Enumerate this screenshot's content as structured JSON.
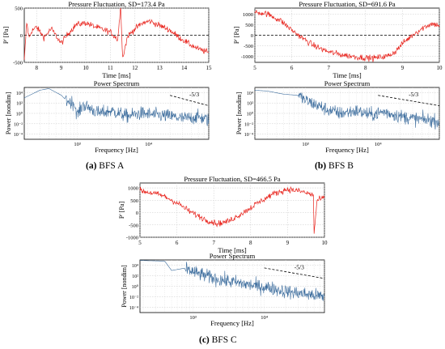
{
  "colors": {
    "pressure": "#e8231c",
    "spectrum": "#3e6e9e"
  },
  "captions": [
    {
      "letter": "(a)",
      "text": "BFS A"
    },
    {
      "letter": "(b)",
      "text": "BFS B"
    },
    {
      "letter": "(c)",
      "text": "BFS C"
    }
  ],
  "chart_data": [
    {
      "type": "line",
      "panel": "A-pressure",
      "title": "Pressure Fluctuation, SD=173.4 Pa",
      "xlabel": "Time [ms]",
      "ylabel": "P' [Pa]",
      "xlim": [
        7.5,
        15
      ],
      "ylim": [
        -500,
        500
      ],
      "xticks": [
        "8",
        "9",
        "10",
        "11",
        "12",
        "13",
        "14",
        "15"
      ],
      "yticks": [
        "500",
        "0",
        "-500"
      ],
      "grid": true,
      "zero_line": "dashed",
      "series": [
        {
          "points": [
            [
              7.5,
              -480
            ],
            [
              7.6,
              230
            ],
            [
              7.7,
              -50
            ],
            [
              7.8,
              80
            ],
            [
              8,
              150
            ],
            [
              8.3,
              -40
            ],
            [
              8.6,
              120
            ],
            [
              9,
              -150
            ],
            [
              9.3,
              40
            ],
            [
              9.6,
              190
            ],
            [
              10,
              230
            ],
            [
              10.3,
              170
            ],
            [
              10.6,
              120
            ],
            [
              11,
              60
            ],
            [
              11.3,
              -80
            ],
            [
              11.42,
              540
            ],
            [
              11.5,
              -420
            ],
            [
              11.7,
              -20
            ],
            [
              12,
              120
            ],
            [
              12.3,
              220
            ],
            [
              12.6,
              260
            ],
            [
              13,
              180
            ],
            [
              13.4,
              100
            ],
            [
              13.8,
              -40
            ],
            [
              14.2,
              -160
            ],
            [
              14.6,
              -260
            ],
            [
              15,
              -320
            ]
          ]
        }
      ]
    },
    {
      "type": "line",
      "panel": "A-spectrum",
      "title": "Power Spectrum",
      "xlabel": "Frequency [Hz]",
      "ylabel": "Power [nondim]",
      "x_scale": "log",
      "y_scale": "log",
      "xlim": [
        180,
        70000
      ],
      "ylim": [
        1e-05,
        100000.0
      ],
      "xticks": [
        "10³",
        "10⁴"
      ],
      "yticks": [
        "10⁴",
        "10²",
        "10⁰",
        "10⁻²",
        "10⁻⁴"
      ],
      "annotation": "-5/3",
      "series": [
        {
          "points": [
            [
              180,
              1000
            ],
            [
              300,
              30000
            ],
            [
              400,
              60000
            ],
            [
              600,
              3000
            ],
            [
              700,
              300
            ],
            [
              900,
              100
            ],
            [
              1000,
              0.5
            ],
            [
              1200,
              40
            ],
            [
              1500,
              10
            ],
            [
              2000,
              1
            ],
            [
              3000,
              3
            ],
            [
              5000,
              0.3
            ],
            [
              8000,
              1
            ],
            [
              12000,
              0.5
            ],
            [
              20000,
              0.3
            ],
            [
              30000,
              0.1
            ],
            [
              50000,
              0.2
            ],
            [
              70000,
              0.05
            ]
          ]
        }
      ],
      "reference_line": {
        "slope": "-5/3",
        "points": [
          [
            20000,
            3000
          ],
          [
            70000,
            30
          ]
        ]
      }
    },
    {
      "type": "line",
      "panel": "B-pressure",
      "title": "Pressure Fluctuation, SD=691.6 Pa",
      "xlabel": "Time [ms]",
      "ylabel": "P' [Pa]",
      "xlim": [
        5,
        10
      ],
      "ylim": [
        -1300,
        1300
      ],
      "xticks": [
        "5",
        "6",
        "7",
        "8",
        "9",
        "10"
      ],
      "yticks": [
        "1000",
        "500",
        "0",
        "-500",
        "-1000"
      ],
      "grid": true,
      "zero_line": "dashed",
      "series": [
        {
          "points": [
            [
              5,
              1100
            ],
            [
              5.3,
              1050
            ],
            [
              5.7,
              700
            ],
            [
              6,
              250
            ],
            [
              6.3,
              -150
            ],
            [
              6.6,
              -500
            ],
            [
              7,
              -800
            ],
            [
              7.4,
              -950
            ],
            [
              7.8,
              -1050
            ],
            [
              8.2,
              -1100
            ],
            [
              8.6,
              -1000
            ],
            [
              8.8,
              -800
            ],
            [
              9,
              -400
            ],
            [
              9.3,
              50
            ],
            [
              9.6,
              400
            ],
            [
              9.8,
              550
            ],
            [
              10,
              480
            ]
          ]
        }
      ]
    },
    {
      "type": "line",
      "panel": "B-spectrum",
      "title": "Power Spectrum",
      "xlabel": "Frequency [Hz]",
      "ylabel": "Power [nondim]",
      "x_scale": "log",
      "y_scale": "log",
      "xlim": [
        200,
        70000
      ],
      "ylim": [
        1e-05,
        100000.0
      ],
      "xticks": [
        "10³",
        "10⁴"
      ],
      "yticks": [
        "10⁴",
        "10²",
        "10⁰",
        "10⁻²",
        "10⁻⁴"
      ],
      "annotation": "-5/3",
      "series": [
        {
          "points": [
            [
              200,
              30000
            ],
            [
              300,
              20000
            ],
            [
              500,
              5000
            ],
            [
              800,
              3000
            ],
            [
              1000,
              300
            ],
            [
              1500,
              30
            ],
            [
              2000,
              5
            ],
            [
              3000,
              1
            ],
            [
              5000,
              3
            ],
            [
              8000,
              0.5
            ],
            [
              12000,
              2
            ],
            [
              20000,
              0.3
            ],
            [
              30000,
              0.1
            ],
            [
              50000,
              0.05
            ],
            [
              70000,
              0.03
            ]
          ]
        }
      ],
      "reference_line": {
        "slope": "-5/3",
        "points": [
          [
            10000,
            3000
          ],
          [
            70000,
            30
          ]
        ]
      }
    },
    {
      "type": "line",
      "panel": "C-pressure",
      "title": "Pressure Fluctuation, SD=466.5 Pa",
      "xlabel": "Time [ms]",
      "ylabel": "P' [Pa]",
      "xlim": [
        5,
        10
      ],
      "ylim": [
        -1000,
        1200
      ],
      "xticks": [
        "5",
        "6",
        "7",
        "8",
        "9",
        "10"
      ],
      "yticks": [
        "1000",
        "500",
        "0",
        "-500",
        "-1000"
      ],
      "grid": true,
      "series": [
        {
          "points": [
            [
              5,
              900
            ],
            [
              5.3,
              800
            ],
            [
              5.6,
              700
            ],
            [
              6,
              400
            ],
            [
              6.4,
              0
            ],
            [
              6.8,
              -300
            ],
            [
              7.1,
              -450
            ],
            [
              7.4,
              -350
            ],
            [
              7.8,
              0
            ],
            [
              8.2,
              400
            ],
            [
              8.6,
              750
            ],
            [
              9,
              950
            ],
            [
              9.4,
              850
            ],
            [
              9.7,
              700
            ],
            [
              9.72,
              -850
            ],
            [
              9.8,
              500
            ],
            [
              10,
              600
            ]
          ]
        }
      ]
    },
    {
      "type": "line",
      "panel": "C-spectrum",
      "title": "Power Spectrum",
      "xlabel": "Frequency [Hz]",
      "ylabel": "Power [nondim]",
      "x_scale": "log",
      "y_scale": "log",
      "xlim": [
        180,
        70000
      ],
      "ylim": [
        1e-05,
        100000.0
      ],
      "xticks": [
        "10³",
        "10⁴"
      ],
      "yticks": [
        "10⁴",
        "10²",
        "10⁰",
        "10⁻²",
        "10⁻⁴"
      ],
      "annotation": "-5/3",
      "series": [
        {
          "points": [
            [
              180,
              80000
            ],
            [
              400,
              60000
            ],
            [
              500,
              1000
            ],
            [
              800,
              3000
            ],
            [
              1000,
              500
            ],
            [
              1500,
              100
            ],
            [
              2000,
              30
            ],
            [
              3000,
              10
            ],
            [
              5000,
              3
            ],
            [
              8000,
              1
            ],
            [
              12000,
              0.5
            ],
            [
              20000,
              0.1
            ],
            [
              30000,
              0.05
            ],
            [
              50000,
              0.02
            ],
            [
              70000,
              0.01
            ]
          ]
        }
      ],
      "reference_line": {
        "slope": "-5/3",
        "points": [
          [
            10000,
            3000
          ],
          [
            70000,
            30
          ]
        ]
      }
    }
  ]
}
